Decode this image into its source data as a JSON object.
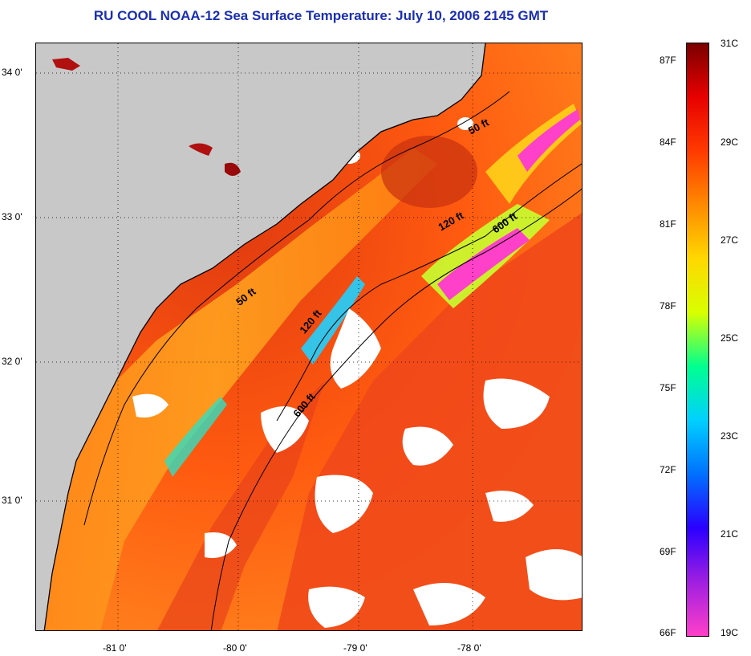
{
  "title": "RU COOL  NOAA-12  Sea Surface Temperature:  July 10, 2006 2145 GMT",
  "latitude_labels": [
    "34 0'",
    "33 0'",
    "32 0'",
    "31 0'"
  ],
  "longitude_labels": [
    "-81 0'",
    "-80 0'",
    "-79 0'",
    "-78 0'"
  ],
  "depth_contour_labels": [
    "50 ft",
    "50 ft",
    "120 ft",
    "120 ft",
    "600 ft",
    "600 ft"
  ],
  "colorbar": {
    "fahrenheit_labels": [
      "87F",
      "84F",
      "81F",
      "78F",
      "75F",
      "72F",
      "69F",
      "66F"
    ],
    "celsius_labels": [
      "31C",
      "29C",
      "27C",
      "25C",
      "23C",
      "21C",
      "19C"
    ],
    "colors": [
      "#ff3fc9",
      "#a01fe0",
      "#2a00ff",
      "#0070ff",
      "#00d0ff",
      "#00ff90",
      "#d8ff00",
      "#ffd800",
      "#ff8a00",
      "#ff3a00",
      "#e80000",
      "#7a0000"
    ]
  },
  "legend_colors": {
    "land": "#c8c8c8",
    "cloud": "#ffffff",
    "coastline": "#000000"
  }
}
